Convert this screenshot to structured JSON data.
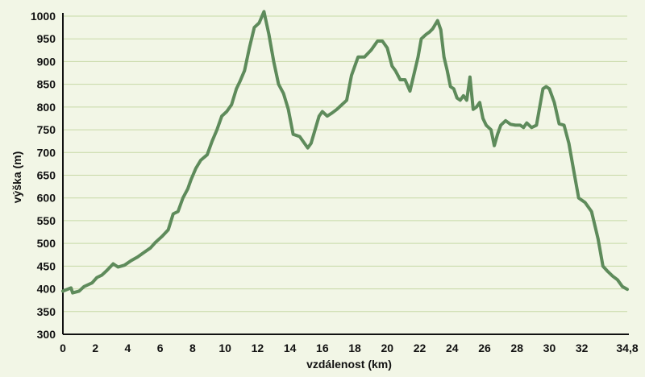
{
  "chart_data": {
    "type": "line",
    "xlabel": "vzdálenost (km)",
    "ylabel": "výška (m)",
    "xlim": [
      0,
      34.8
    ],
    "ylim": [
      300,
      1000
    ],
    "x_ticks": [
      0,
      2,
      4,
      6,
      8,
      10,
      12,
      14,
      16,
      18,
      20,
      22,
      24,
      26,
      28,
      30,
      32,
      34.8
    ],
    "x_tick_labels": [
      "0",
      "2",
      "4",
      "6",
      "8",
      "10",
      "12",
      "14",
      "16",
      "18",
      "20",
      "22",
      "24",
      "26",
      "28",
      "30",
      "32",
      "34,8"
    ],
    "y_ticks": [
      300,
      350,
      400,
      450,
      500,
      550,
      600,
      650,
      700,
      750,
      800,
      850,
      900,
      950,
      1000
    ],
    "y_tick_labels": [
      "300",
      "350",
      "400",
      "450",
      "500",
      "550",
      "600",
      "650",
      "700",
      "750",
      "800",
      "850",
      "900",
      "950",
      "1000"
    ],
    "grid": "horizontal",
    "colors": {
      "line": "#5e8b5b",
      "grid": "#c7d9a6",
      "axis": "#111111",
      "background": "#f2f6e6"
    },
    "series": [
      {
        "x": [
          0,
          0.5,
          0.6,
          1.0,
          1.3,
          1.8,
          2.1,
          2.4,
          2.7,
          3.1,
          3.4,
          3.8,
          4.2,
          4.6,
          5.0,
          5.4,
          5.7,
          6.1,
          6.5,
          6.8,
          7.1,
          7.4,
          7.7,
          7.9,
          8.2,
          8.5,
          8.9,
          9.2,
          9.5,
          9.8,
          10.1,
          10.4,
          10.7,
          10.9,
          11.2,
          11.5,
          11.8,
          12.1,
          12.4,
          12.7,
          13.0,
          13.3,
          13.6,
          13.9,
          14.2,
          14.6,
          14.9,
          15.1,
          15.3,
          15.8,
          16.0,
          16.3,
          16.6,
          16.9,
          17.2,
          17.5,
          17.8,
          18.2,
          18.6,
          19.0,
          19.4,
          19.7,
          20.0,
          20.3,
          20.5,
          20.8,
          21.1,
          21.4,
          21.7,
          21.9,
          22.1,
          22.4,
          22.6,
          22.8,
          23.1,
          23.3,
          23.5,
          23.7,
          23.9,
          24.1,
          24.3,
          24.5,
          24.7,
          24.9,
          25.1,
          25.3,
          25.5,
          25.7,
          25.9,
          26.1,
          26.4,
          26.6,
          26.8,
          27.0,
          27.3,
          27.6,
          27.9,
          28.2,
          28.4,
          28.6,
          28.9,
          29.2,
          29.4,
          29.6,
          29.8,
          30.0,
          30.3,
          30.6,
          30.9,
          31.2,
          31.5,
          31.8,
          32.2,
          32.6,
          33.0,
          33.3,
          33.6,
          33.9,
          34.2,
          34.5,
          34.8
        ],
        "y": [
          395,
          402,
          391,
          395,
          405,
          413,
          425,
          430,
          440,
          455,
          448,
          452,
          462,
          470,
          480,
          490,
          502,
          515,
          530,
          565,
          570,
          600,
          620,
          640,
          665,
          683,
          695,
          725,
          750,
          780,
          790,
          805,
          840,
          855,
          880,
          930,
          975,
          985,
          1010,
          960,
          900,
          850,
          830,
          795,
          740,
          735,
          720,
          710,
          720,
          780,
          790,
          780,
          787,
          795,
          805,
          815,
          870,
          910,
          910,
          925,
          945,
          945,
          930,
          890,
          880,
          860,
          860,
          835,
          880,
          910,
          950,
          960,
          965,
          972,
          990,
          970,
          910,
          880,
          845,
          840,
          820,
          815,
          825,
          815,
          866,
          795,
          800,
          810,
          775,
          760,
          750,
          715,
          740,
          760,
          770,
          762,
          760,
          760,
          755,
          765,
          755,
          760,
          800,
          840,
          845,
          840,
          810,
          763,
          760,
          720,
          660,
          600,
          590,
          570,
          510,
          450,
          438,
          428,
          420,
          405,
          399
        ]
      }
    ]
  }
}
